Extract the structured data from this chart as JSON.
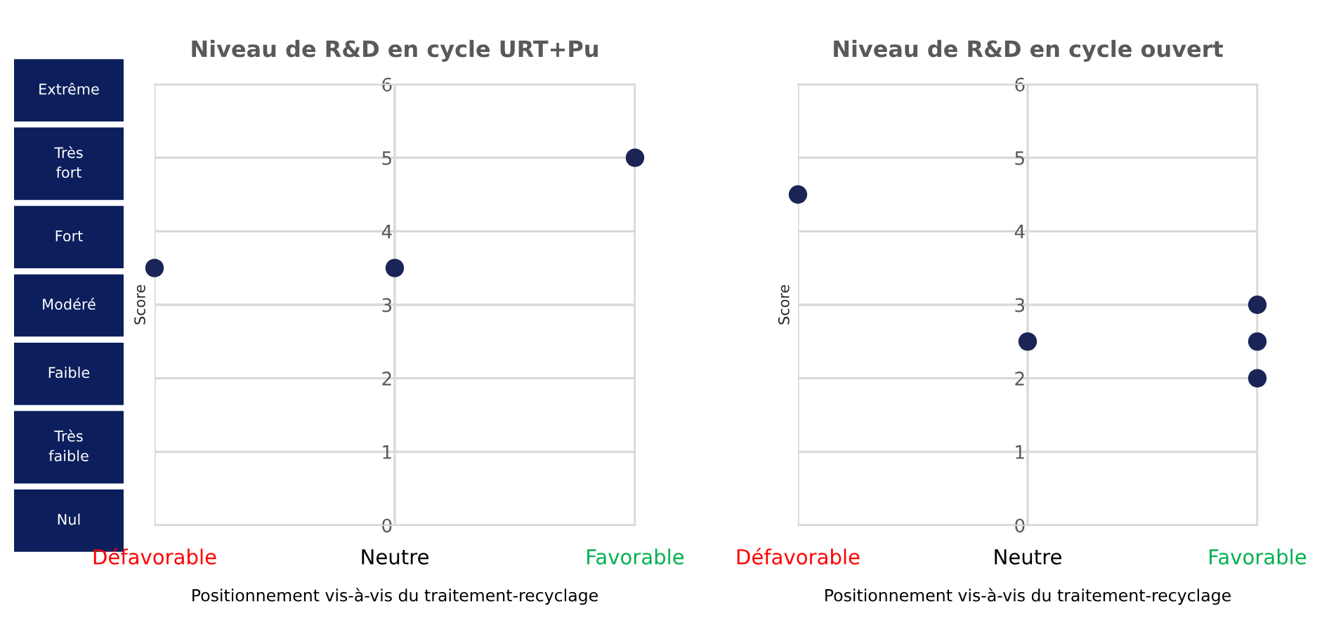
{
  "chart_data": [
    {
      "type": "other",
      "annotations": [
        "Extrême",
        "Très\nfort",
        "Fort",
        "Modéré",
        "Faible",
        "Très\nfaible",
        "Nul"
      ]
    },
    {
      "type": "scatter",
      "title": "Niveau de R&D en cycle URT+Pu",
      "xlabel": "Positionnement vis-à-vis du traitement-recyclage",
      "ylabel": "Score",
      "categories": [
        "Défavorable",
        "Neutre",
        "Favorable"
      ],
      "ylim": [
        0,
        6
      ],
      "yticks": [
        0,
        1,
        2,
        3,
        4,
        5,
        6
      ],
      "grid": true,
      "marker": "circle",
      "series": [
        {
          "color": "#1a2456",
          "x": [
            "Défavorable",
            "Neutre",
            "Favorable"
          ],
          "values": [
            3.5,
            3.5,
            5
          ]
        }
      ]
    },
    {
      "type": "scatter",
      "title": "Niveau de R&D en cycle ouvert",
      "xlabel": "Positionnement vis-à-vis du traitement-recyclage",
      "ylabel": "Score",
      "categories": [
        "Défavorable",
        "Neutre",
        "Favorable"
      ],
      "ylim": [
        0,
        6
      ],
      "yticks": [
        0,
        1,
        2,
        3,
        4,
        5,
        6
      ],
      "grid": true,
      "marker": "circle",
      "series": [
        {
          "color": "#1a2456",
          "x": [
            "Défavorable",
            "Neutre",
            "Favorable",
            "Favorable",
            "Favorable"
          ],
          "values": [
            4.5,
            2.5,
            3,
            2.5,
            2
          ]
        }
      ]
    }
  ]
}
